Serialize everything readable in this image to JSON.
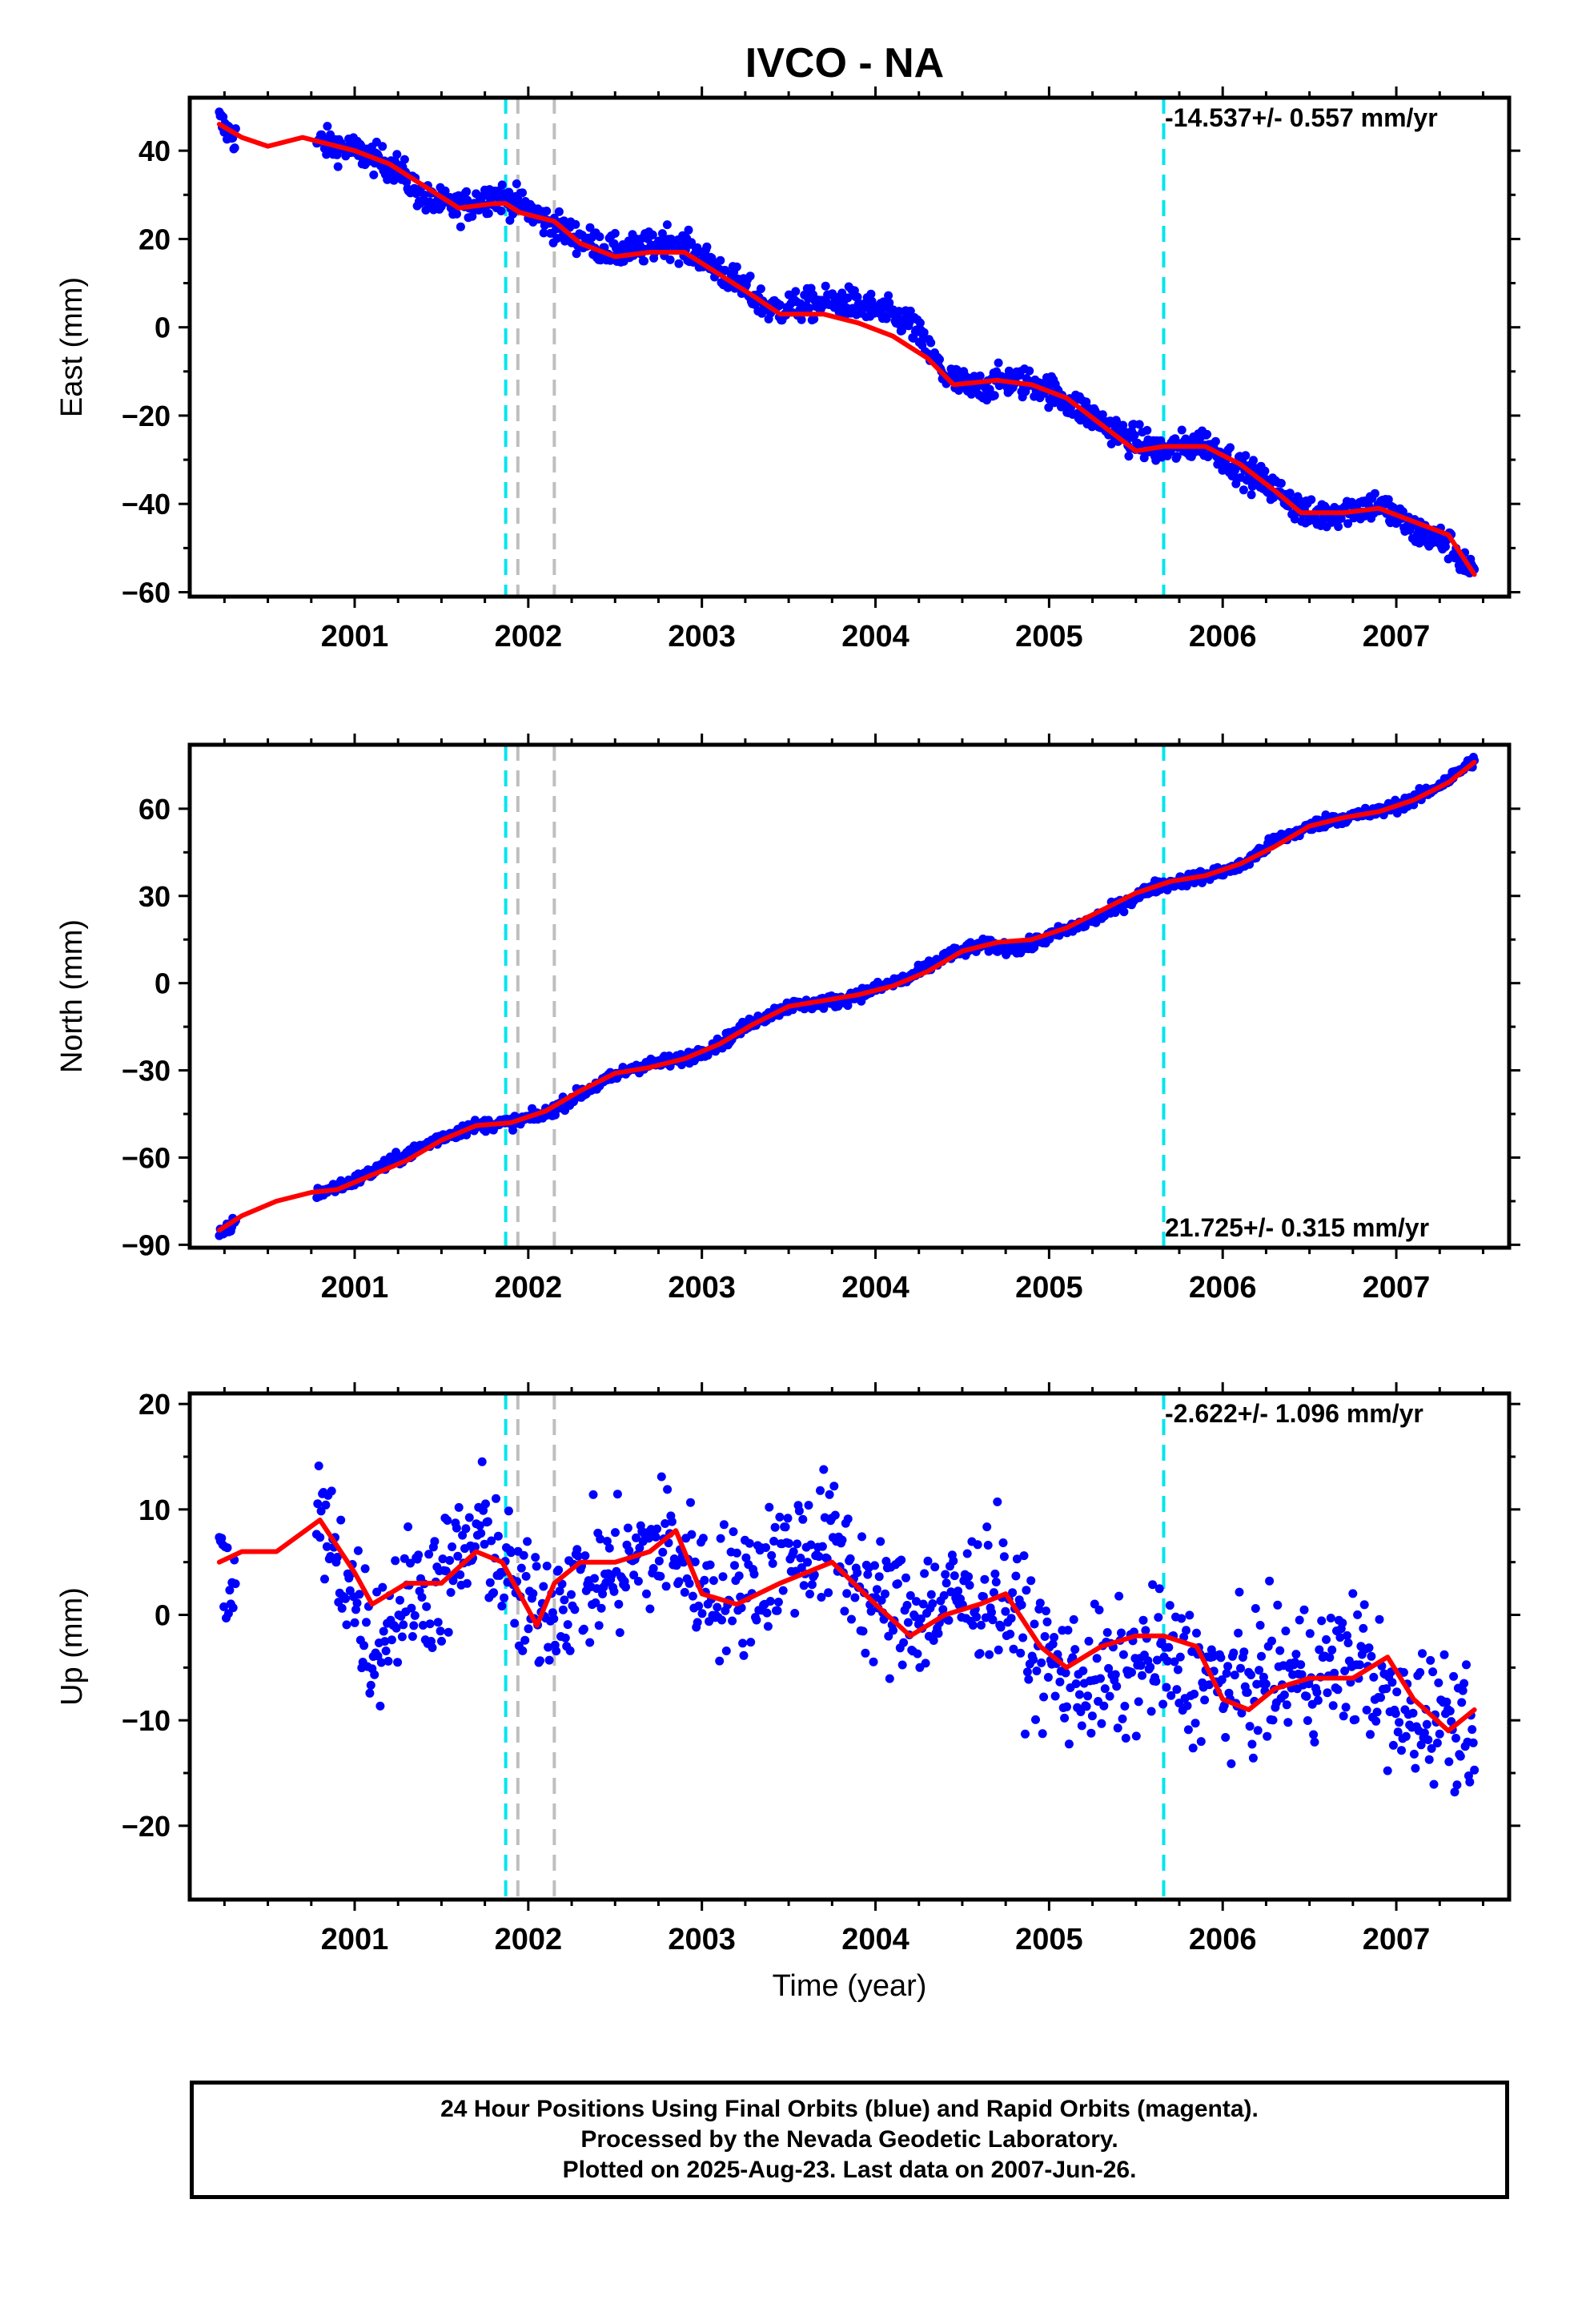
{
  "title": "IVCO - NA",
  "colors": {
    "data": "#0000ff",
    "model": "#ff0000",
    "antenna_offset": "#00e5ee",
    "other_offset": "#bfbfbf",
    "frame": "#000000"
  },
  "x_axis": {
    "label": "Time (year)",
    "range": [
      2000.05,
      2007.65
    ],
    "ticks": [
      "2001",
      "2002",
      "2003",
      "2004",
      "2005",
      "2006",
      "2007"
    ]
  },
  "offsets": {
    "cyan_years": [
      2001.87,
      2005.66
    ],
    "gray_years": [
      2001.94,
      2002.15
    ]
  },
  "chart_data": [
    {
      "type": "scatter",
      "component": "east",
      "ylabel": "East (mm)",
      "ylim": [
        -61,
        52
      ],
      "yticks": [
        "40",
        "20",
        "0",
        "−20",
        "−40",
        "−60"
      ],
      "rate_text": "-14.537+/- 0.557 mm/yr",
      "rate_position": "top-right",
      "data_gap": [
        2000.32,
        2000.78
      ],
      "series": [
        {
          "name": "24 Hour Positions (final orbits)",
          "style": "points",
          "x": [
            2000.22,
            2000.25,
            2000.28,
            2000.31,
            2000.8,
            2001.0,
            2001.25,
            2001.4,
            2001.6,
            2001.8,
            2001.95,
            2002.1,
            2002.3,
            2002.5,
            2002.7,
            2002.8,
            2003.0,
            2003.2,
            2003.4,
            2003.6,
            2003.8,
            2004.0,
            2004.2,
            2004.4,
            2004.55,
            2004.75,
            2004.95,
            2005.2,
            2005.45,
            2005.66,
            2005.9,
            2006.1,
            2006.35,
            2006.5,
            2006.75,
            2006.9,
            2007.1,
            2007.3,
            2007.45
          ],
          "y": [
            47,
            45,
            44,
            43,
            42,
            40,
            36,
            29,
            27,
            30,
            28,
            24,
            20,
            17,
            18,
            20,
            16,
            10,
            4,
            5,
            6,
            4,
            1,
            -11,
            -14,
            -12,
            -13,
            -19,
            -25,
            -28,
            -26,
            -32,
            -38,
            -43,
            -41,
            -40,
            -46,
            -49,
            -56
          ],
          "jitter_mm": 2.5,
          "points_per_year": 180
        },
        {
          "name": "Model",
          "style": "line",
          "x": [
            2000.22,
            2000.35,
            2000.5,
            2000.7,
            2000.8,
            2001.0,
            2001.2,
            2001.4,
            2001.6,
            2001.8,
            2001.87,
            2001.95,
            2002.15,
            2002.3,
            2002.5,
            2002.7,
            2002.9,
            2003.1,
            2003.3,
            2003.45,
            2003.7,
            2003.9,
            2004.1,
            2004.3,
            2004.45,
            2004.7,
            2004.9,
            2005.1,
            2005.3,
            2005.5,
            2005.66,
            2005.9,
            2006.1,
            2006.3,
            2006.45,
            2006.7,
            2006.9,
            2007.1,
            2007.3,
            2007.45
          ],
          "y": [
            46,
            43,
            41,
            43,
            42,
            40,
            37,
            32,
            27,
            28,
            28,
            26,
            24,
            19,
            16,
            17,
            17,
            12,
            7,
            3,
            3,
            1,
            -2,
            -7,
            -13,
            -12,
            -13,
            -16,
            -22,
            -28,
            -27,
            -27,
            -31,
            -37,
            -42,
            -42,
            -41,
            -44,
            -47,
            -56
          ]
        }
      ]
    },
    {
      "type": "scatter",
      "component": "north",
      "ylabel": "North (mm)",
      "ylim": [
        -91,
        82
      ],
      "yticks": [
        "60",
        "30",
        "0",
        "−30",
        "−60",
        "−90"
      ],
      "rate_text": "21.725+/- 0.315 mm/yr",
      "rate_position": "bottom-right",
      "data_gap": [
        2000.32,
        2000.78
      ],
      "series": [
        {
          "name": "24 Hour Positions (final orbits)",
          "style": "points",
          "x": [
            2000.22,
            2000.25,
            2000.28,
            2000.31,
            2000.8,
            2001.0,
            2001.2,
            2001.5,
            2001.7,
            2001.9,
            2002.1,
            2002.3,
            2002.6,
            2002.9,
            2003.1,
            2003.3,
            2003.5,
            2003.8,
            2004.0,
            2004.2,
            2004.4,
            2004.6,
            2004.85,
            2005.0,
            2005.3,
            2005.6,
            2005.9,
            2006.1,
            2006.3,
            2006.6,
            2006.9,
            2007.1,
            2007.3,
            2007.45
          ],
          "y": [
            -87,
            -85,
            -84,
            -82,
            -72,
            -68,
            -62,
            -53,
            -49,
            -48,
            -45,
            -38,
            -29,
            -26,
            -21,
            -13,
            -8,
            -6,
            -2,
            2,
            9,
            13,
            12,
            16,
            23,
            33,
            37,
            40,
            49,
            56,
            59,
            63,
            70,
            77
          ],
          "jitter_mm": 1.5,
          "points_per_year": 180
        },
        {
          "name": "Model",
          "style": "line",
          "x": [
            2000.22,
            2000.35,
            2000.55,
            2000.75,
            2000.9,
            2001.1,
            2001.3,
            2001.5,
            2001.7,
            2001.9,
            2002.1,
            2002.3,
            2002.5,
            2002.7,
            2002.9,
            2003.1,
            2003.3,
            2003.5,
            2003.7,
            2003.9,
            2004.1,
            2004.3,
            2004.5,
            2004.7,
            2004.9,
            2005.1,
            2005.3,
            2005.5,
            2005.7,
            2005.9,
            2006.1,
            2006.3,
            2006.5,
            2006.7,
            2006.9,
            2007.1,
            2007.3,
            2007.45
          ],
          "y": [
            -85,
            -80,
            -75,
            -72,
            -71,
            -66,
            -61,
            -54,
            -49,
            -48,
            -44,
            -37,
            -31,
            -29,
            -26,
            -21,
            -14,
            -8,
            -6,
            -4,
            -1,
            4,
            11,
            14,
            15,
            19,
            25,
            31,
            35,
            37,
            41,
            47,
            54,
            57,
            59,
            63,
            69,
            76
          ]
        }
      ]
    },
    {
      "type": "scatter",
      "component": "up",
      "ylabel": "Up (mm)",
      "ylim": [
        -27,
        21
      ],
      "yticks": [
        "20",
        "10",
        "0",
        "−10",
        "−20"
      ],
      "rate_text": "-2.622+/- 1.096 mm/yr",
      "rate_position": "top-right",
      "data_gap": [
        2000.32,
        2000.78
      ],
      "series": [
        {
          "name": "24 Hour Positions (final orbits)",
          "style": "points",
          "x": [
            2000.22,
            2000.27,
            2000.31,
            2000.8,
            2001.0,
            2001.1,
            2001.3,
            2001.5,
            2001.75,
            2001.9,
            2002.0,
            2002.2,
            2002.5,
            2002.8,
            2003.0,
            2003.2,
            2003.5,
            2003.75,
            2004.0,
            2004.2,
            2004.4,
            2004.7,
            2004.9,
            2005.1,
            2005.4,
            2005.6,
            2005.9,
            2006.05,
            2006.3,
            2006.6,
            2006.8,
            2007.0,
            2007.2,
            2007.45
          ],
          "y": [
            4,
            3,
            2,
            9,
            2,
            -3,
            2,
            3,
            8,
            3,
            0,
            2,
            4,
            7,
            3,
            2,
            6,
            7,
            1,
            0,
            1,
            3,
            -3,
            -6,
            -6,
            -4,
            -6,
            -7,
            -6,
            -5,
            -4,
            -10,
            -9,
            -10
          ],
          "jitter_mm": 4.5,
          "points_per_year": 150
        },
        {
          "name": "Model",
          "style": "line",
          "x": [
            2000.22,
            2000.35,
            2000.55,
            2000.8,
            2001.0,
            2001.1,
            2001.3,
            2001.5,
            2001.7,
            2001.85,
            2001.95,
            2002.05,
            2002.15,
            2002.3,
            2002.5,
            2002.7,
            2002.85,
            2003.0,
            2003.2,
            2003.45,
            2003.75,
            2004.0,
            2004.2,
            2004.4,
            2004.6,
            2004.75,
            2004.95,
            2005.1,
            2005.3,
            2005.5,
            2005.66,
            2005.85,
            2006.0,
            2006.15,
            2006.3,
            2006.5,
            2006.75,
            2006.95,
            2007.1,
            2007.3,
            2007.45
          ],
          "y": [
            5,
            6,
            6,
            9,
            4,
            1,
            3,
            3,
            6,
            5,
            2,
            -1,
            3,
            5,
            5,
            6,
            8,
            2,
            1,
            3,
            5,
            1,
            -2,
            0,
            1,
            2,
            -3,
            -5,
            -3,
            -2,
            -2,
            -3,
            -8,
            -9,
            -7,
            -6,
            -6,
            -4,
            -8,
            -11,
            -9
          ]
        }
      ]
    }
  ],
  "caption": {
    "line1": "24 Hour Positions Using Final Orbits (blue) and Rapid Orbits (magenta).",
    "line2": "Processed by the Nevada Geodetic Laboratory.",
    "line3": "Plotted on 2025-Aug-23. Last data on 2007-Jun-26."
  }
}
